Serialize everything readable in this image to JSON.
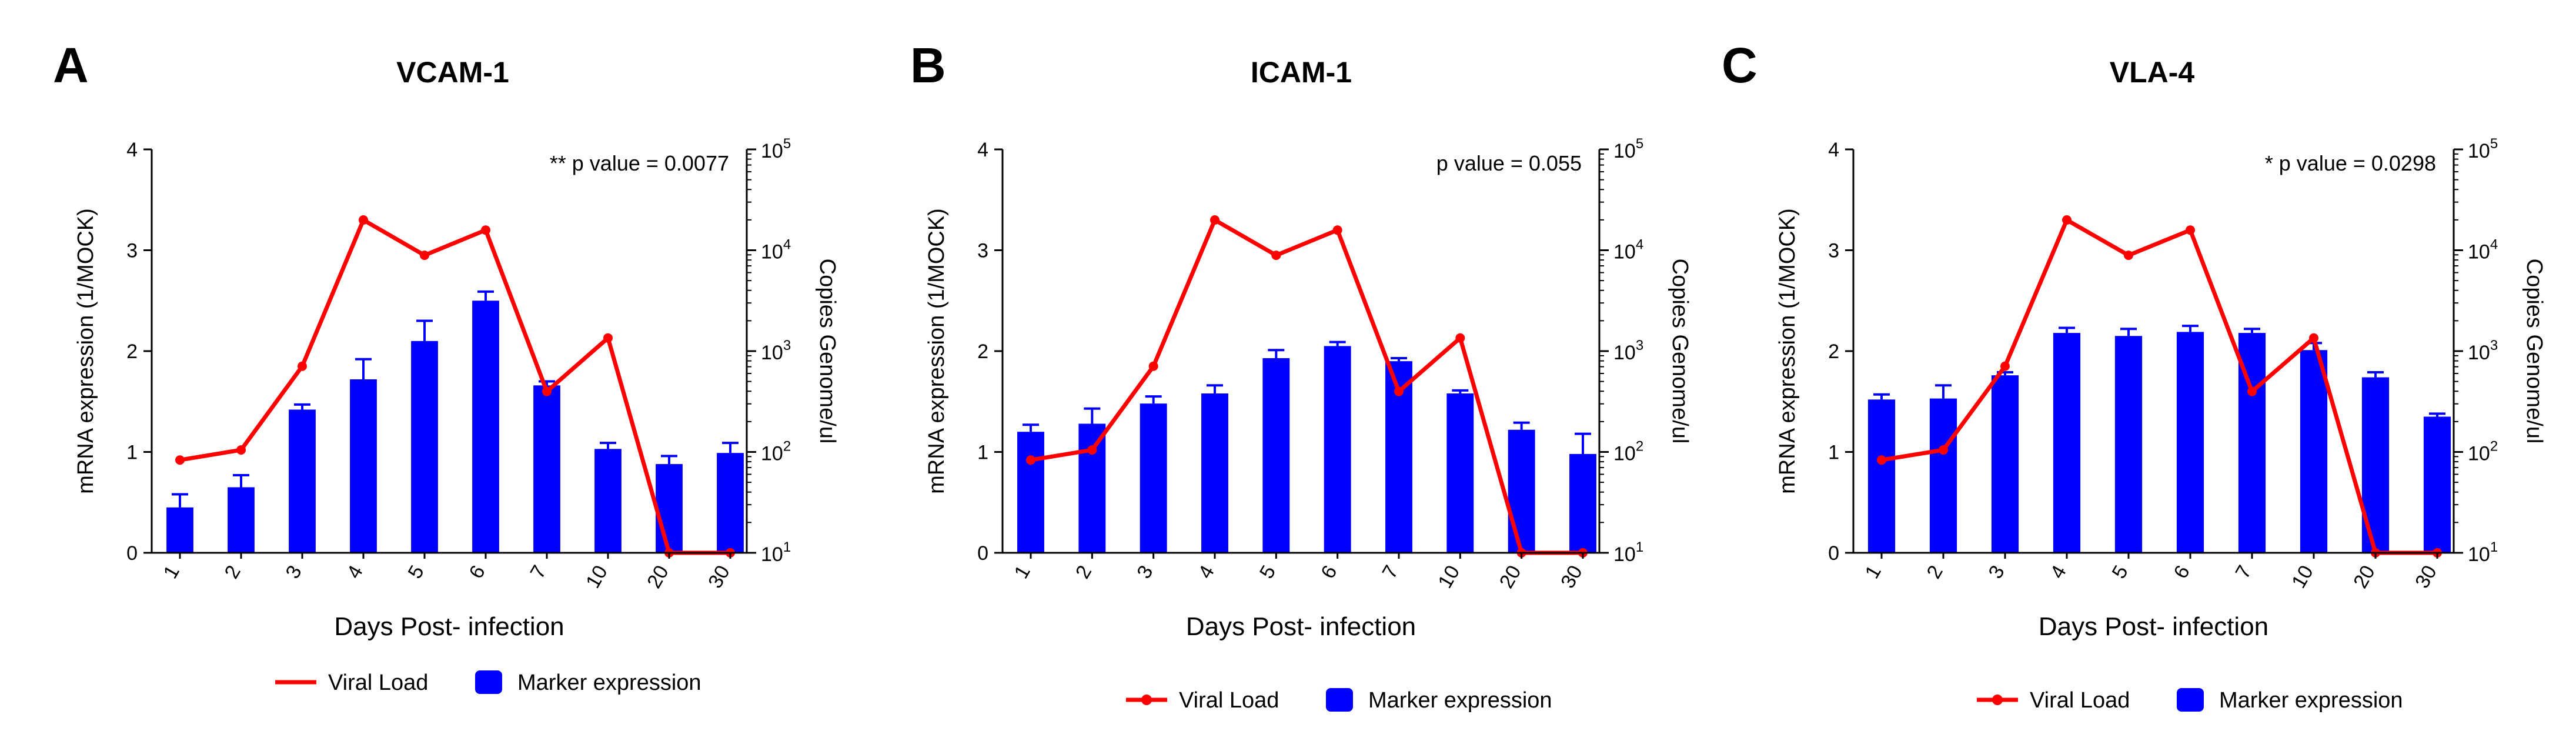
{
  "chart_data": [
    {
      "type": "bar+line",
      "panel_letter": "A",
      "title": "VCAM-1",
      "p_value_text": "** p value = 0.0077",
      "xlabel": "Days Post- infection",
      "ylabel": "mRNA expression (1/MOCK)",
      "y2label": "Copies Genome/ul",
      "categories": [
        "1",
        "2",
        "3",
        "4",
        "5",
        "6",
        "7",
        "10",
        "20",
        "30"
      ],
      "ylim": [
        0,
        4
      ],
      "yticks": [
        "0",
        "1",
        "2",
        "3",
        "4"
      ],
      "y2_log_range": [
        1,
        5
      ],
      "y2ticks": [
        "10^1",
        "10^2",
        "10^3",
        "10^4",
        "10^5"
      ],
      "series": [
        {
          "name": "Marker expression",
          "kind": "bar",
          "axis": "left",
          "color": "#0000ff",
          "values": [
            0.45,
            0.65,
            1.42,
            1.72,
            2.1,
            2.5,
            1.66,
            1.03,
            0.88,
            0.99
          ],
          "errors": [
            0.13,
            0.12,
            0.05,
            0.2,
            0.2,
            0.09,
            0.04,
            0.06,
            0.08,
            0.1
          ]
        },
        {
          "name": "Viral Load",
          "kind": "line",
          "axis": "right",
          "color": "#ff0000",
          "values_log10": [
            1.92,
            2.02,
            2.85,
            4.3,
            3.95,
            4.2,
            2.6,
            3.13,
            1.0,
            1.0
          ]
        }
      ],
      "legend": {
        "line_label": "Viral Load",
        "bar_label": "Marker expression",
        "line_has_dot": false
      }
    },
    {
      "type": "bar+line",
      "panel_letter": "B",
      "title": "ICAM-1",
      "p_value_text": "p value = 0.055",
      "xlabel": "Days Post- infection",
      "ylabel": "mRNA expression (1/MOCK)",
      "y2label": "Copies Genome/ul",
      "categories": [
        "1",
        "2",
        "3",
        "4",
        "5",
        "6",
        "7",
        "10",
        "20",
        "30"
      ],
      "ylim": [
        0,
        4
      ],
      "yticks": [
        "0",
        "1",
        "2",
        "3",
        "4"
      ],
      "y2_log_range": [
        1,
        5
      ],
      "y2ticks": [
        "10^1",
        "10^2",
        "10^3",
        "10^4",
        "10^5"
      ],
      "series": [
        {
          "name": "Marker expression",
          "kind": "bar",
          "axis": "left",
          "color": "#0000ff",
          "values": [
            1.2,
            1.28,
            1.48,
            1.58,
            1.93,
            2.05,
            1.9,
            1.58,
            1.22,
            0.98
          ],
          "errors": [
            0.07,
            0.15,
            0.07,
            0.08,
            0.08,
            0.04,
            0.03,
            0.03,
            0.07,
            0.2
          ]
        },
        {
          "name": "Viral Load",
          "kind": "line",
          "axis": "right",
          "color": "#ff0000",
          "values_log10": [
            1.92,
            2.02,
            2.85,
            4.3,
            3.95,
            4.2,
            2.6,
            3.13,
            1.0,
            1.0
          ]
        }
      ],
      "legend": {
        "line_label": "Viral Load",
        "bar_label": "Marker expression",
        "line_has_dot": true
      }
    },
    {
      "type": "bar+line",
      "panel_letter": "C",
      "title": "VLA-4",
      "p_value_text": "* p value = 0.0298",
      "xlabel": "Days Post- infection",
      "ylabel": "mRNA expression (1/MOCK)",
      "y2label": "Copies Genome/ul",
      "categories": [
        "1",
        "2",
        "3",
        "4",
        "5",
        "6",
        "7",
        "10",
        "20",
        "30"
      ],
      "ylim": [
        0,
        4
      ],
      "yticks": [
        "0",
        "1",
        "2",
        "3",
        "4"
      ],
      "y2_log_range": [
        1,
        5
      ],
      "y2ticks": [
        "10^1",
        "10^2",
        "10^3",
        "10^4",
        "10^5"
      ],
      "series": [
        {
          "name": "Marker expression",
          "kind": "bar",
          "axis": "left",
          "color": "#0000ff",
          "values": [
            1.52,
            1.53,
            1.76,
            2.18,
            2.15,
            2.19,
            2.18,
            2.01,
            1.74,
            1.35
          ],
          "errors": [
            0.05,
            0.13,
            0.03,
            0.05,
            0.07,
            0.06,
            0.04,
            0.07,
            0.05,
            0.03
          ]
        },
        {
          "name": "Viral Load",
          "kind": "line",
          "axis": "right",
          "color": "#ff0000",
          "values_log10": [
            1.92,
            2.02,
            2.85,
            4.3,
            3.95,
            4.2,
            2.6,
            3.13,
            1.0,
            1.0
          ]
        }
      ],
      "legend": {
        "line_label": "Viral Load",
        "bar_label": "Marker expression",
        "line_has_dot": true
      }
    }
  ]
}
